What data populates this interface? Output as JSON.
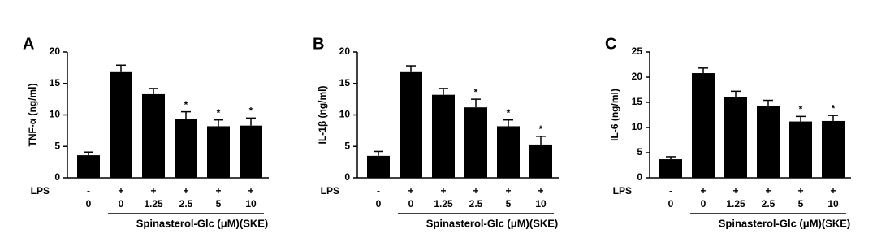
{
  "chart_data": [
    {
      "type": "bar",
      "panel": "A",
      "ylabel": "TNF-α (ng/ml)",
      "lps_label": "LPS",
      "lps": [
        "-",
        "+",
        "+",
        "+",
        "+",
        "+"
      ],
      "categories": [
        "0",
        "0",
        "1.25",
        "2.5",
        "5",
        "10"
      ],
      "xlabel": "Spinasterol-Glc (μM)(SKE)",
      "color": "#000000",
      "values": [
        3.6,
        16.8,
        13.3,
        9.3,
        8.2,
        8.3
      ],
      "errors": [
        0.5,
        1.1,
        0.9,
        1.2,
        1.0,
        1.2
      ],
      "significance": [
        null,
        null,
        null,
        "*",
        "*",
        "*"
      ],
      "ylim": [
        0,
        20
      ],
      "yticks": [
        0,
        5,
        10,
        15,
        20
      ]
    },
    {
      "type": "bar",
      "panel": "B",
      "ylabel": "IL-1β (ng/ml)",
      "lps_label": "LPS",
      "lps": [
        "-",
        "+",
        "+",
        "+",
        "+",
        "+"
      ],
      "categories": [
        "0",
        "0",
        "1.25",
        "2.5",
        "5",
        "10"
      ],
      "xlabel": "Spinasterol-Glc (μM)(SKE)",
      "color": "#000000",
      "values": [
        3.5,
        16.8,
        13.2,
        11.2,
        8.2,
        5.3
      ],
      "errors": [
        0.7,
        1.0,
        1.0,
        1.3,
        1.0,
        1.3
      ],
      "significance": [
        null,
        null,
        null,
        "*",
        "*",
        "*"
      ],
      "ylim": [
        0,
        20
      ],
      "yticks": [
        0,
        5,
        10,
        15,
        20
      ]
    },
    {
      "type": "bar",
      "panel": "C",
      "ylabel": "IL-6 (ng/ml)",
      "lps_label": "LPS",
      "lps": [
        "-",
        "+",
        "+",
        "+",
        "+",
        "+"
      ],
      "categories": [
        "0",
        "0",
        "1.25",
        "2.5",
        "5",
        "10"
      ],
      "xlabel": "Spinasterol-Glc (μM)(SKE)",
      "color": "#000000",
      "values": [
        3.7,
        20.8,
        16.1,
        14.3,
        11.2,
        11.3
      ],
      "errors": [
        0.5,
        1.0,
        1.1,
        1.1,
        1.0,
        1.1
      ],
      "significance": [
        null,
        null,
        null,
        null,
        "*",
        "*"
      ],
      "ylim": [
        0,
        25
      ],
      "yticks": [
        0,
        5,
        10,
        15,
        20,
        25
      ]
    }
  ]
}
